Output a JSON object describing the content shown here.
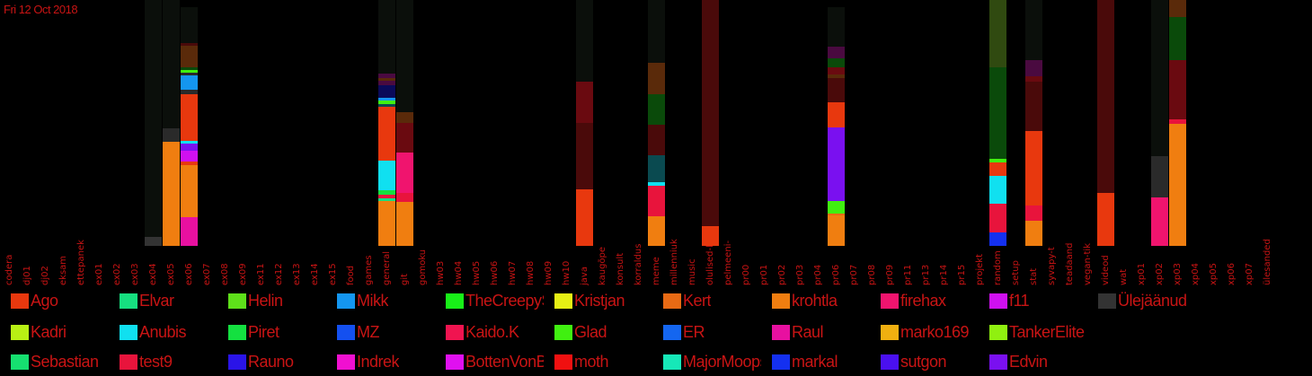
{
  "date_label": "Fri 12 Oct 2018",
  "colors": {
    "background": "#000000",
    "text": "#c81414",
    "inactive": "#0b0f0b"
  },
  "chart_data": {
    "type": "bar",
    "stacked": true,
    "title": "",
    "xlabel": "",
    "ylabel": "",
    "categories": [
      "codera",
      "dj01",
      "dj02",
      "eksam",
      "ettepanek",
      "ex01",
      "ex02",
      "ex03",
      "ex04",
      "ex05",
      "ex06",
      "ex07",
      "ex08",
      "ex09",
      "ex11",
      "ex12",
      "ex13",
      "ex14",
      "ex15",
      "food",
      "games",
      "general",
      "git",
      "gomoku",
      "hw03",
      "hw04",
      "hw05",
      "hw06",
      "hw07",
      "hw08",
      "hw09",
      "hw10",
      "java",
      "kaugõpe",
      "konsult",
      "korraldus",
      "meme",
      "millenniuk",
      "music",
      "olulised-l",
      "pelmeeni-",
      "pr00",
      "pr01",
      "pr02",
      "pr03",
      "pr04",
      "pr06",
      "pr07",
      "pr08",
      "pr09",
      "pr11",
      "pr13",
      "pr14",
      "pr15",
      "projekt",
      "random",
      "setup",
      "stat",
      "syvapy-t",
      "teadaand",
      "vegan-tik",
      "videod",
      "wat",
      "xp01",
      "xp02",
      "xp03",
      "xp04",
      "xp05",
      "xp06",
      "xp07",
      "ülesanded"
    ],
    "series_colors": {
      "Ago": "#e8380e",
      "Elvar": "#16e080",
      "Helin": "#5ee01a",
      "Mikk": "#1496f0",
      "TheCreepySh": "#18f018",
      "Kristjan": "#e6f014",
      "Kert": "#e86a14",
      "krohtla": "#f07e10",
      "firehax": "#f0146e",
      "f11": "#d010f0",
      "Ülejäänud": "#333333",
      "Kadri": "#b8f014",
      "Anubis": "#10e0f0",
      "Piret": "#14e040",
      "MZ": "#1450f0",
      "Kaido.K": "#f01450",
      "Glad": "#40f010",
      "ER": "#1466f0",
      "Raul": "#e810a0",
      "marko169": "#f0b010",
      "TankerElite": "#90f010",
      "Sebastian": "#16e070",
      "test9": "#e8143c",
      "Rauno": "#2a14e8",
      "Indrek": "#f010d0",
      "BottenVonBot": "#e010f0",
      "moth": "#f01010",
      "MajorMoopsy": "#16e8b8",
      "markal": "#1430f0",
      "sutgon": "#4a10f0",
      "Edvin": "#7a10f0",
      "dark_red": "#4a0a0a",
      "maroon": "#6a0a10",
      "dark_green": "#0a4a0a",
      "olive": "#304a10",
      "dark_teal": "#0a4a50",
      "dark_purple": "#4a0a40",
      "navy": "#0a0a5a",
      "brown": "#5a2a0a",
      "dark_gray": "#2a2a2a",
      "inactive": "#0b0f0b"
    },
    "stacks": [
      {
        "category": "ex04",
        "segments": [
          {
            "s": "Ülejäänud",
            "v": 10
          },
          {
            "s": "inactive",
            "v": 264
          }
        ]
      },
      {
        "category": "ex05",
        "segments": [
          {
            "s": "krohtla",
            "v": 116
          },
          {
            "s": "dark_gray",
            "v": 15
          },
          {
            "s": "inactive",
            "v": 143
          }
        ]
      },
      {
        "category": "ex06",
        "segments": [
          {
            "s": "Raul",
            "v": 32
          },
          {
            "s": "krohtla",
            "v": 58
          },
          {
            "s": "Ago",
            "v": 4
          },
          {
            "s": "f11",
            "v": 12
          },
          {
            "s": "Edvin",
            "v": 8
          },
          {
            "s": "Anubis",
            "v": 3
          },
          {
            "s": "Ago",
            "v": 52
          },
          {
            "s": "dark_gray",
            "v": 5
          },
          {
            "s": "Mikk",
            "v": 16
          },
          {
            "s": "dark_gray",
            "v": 3
          },
          {
            "s": "Glad",
            "v": 3
          },
          {
            "s": "dark_green",
            "v": 3
          },
          {
            "s": "brown",
            "v": 24
          },
          {
            "s": "dark_red",
            "v": 3
          },
          {
            "s": "inactive",
            "v": 40
          }
        ]
      },
      {
        "category": "general",
        "segments": [
          {
            "s": "krohtla",
            "v": 50
          },
          {
            "s": "Elvar",
            "v": 3
          },
          {
            "s": "test9",
            "v": 4
          },
          {
            "s": "Piret",
            "v": 5
          },
          {
            "s": "Anubis",
            "v": 33
          },
          {
            "s": "Ago",
            "v": 60
          },
          {
            "s": "dark_teal",
            "v": 3
          },
          {
            "s": "Glad",
            "v": 4
          },
          {
            "s": "Mikk",
            "v": 3
          },
          {
            "s": "navy",
            "v": 14
          },
          {
            "s": "dark_purple",
            "v": 5
          },
          {
            "s": "brown",
            "v": 3
          },
          {
            "s": "dark_purple",
            "v": 5
          },
          {
            "s": "inactive",
            "v": 82
          }
        ]
      },
      {
        "category": "git",
        "segments": [
          {
            "s": "krohtla",
            "v": 49
          },
          {
            "s": "test9",
            "v": 10
          },
          {
            "s": "firehax",
            "v": 45
          },
          {
            "s": "maroon",
            "v": 33
          },
          {
            "s": "brown",
            "v": 12
          },
          {
            "s": "inactive",
            "v": 125
          }
        ]
      },
      {
        "category": "java",
        "segments": [
          {
            "s": "Ago",
            "v": 63
          },
          {
            "s": "dark_red",
            "v": 74
          },
          {
            "s": "maroon",
            "v": 46
          },
          {
            "s": "inactive",
            "v": 91
          }
        ]
      },
      {
        "category": "meme",
        "segments": [
          {
            "s": "krohtla",
            "v": 33
          },
          {
            "s": "test9",
            "v": 34
          },
          {
            "s": "Anubis",
            "v": 4
          },
          {
            "s": "dark_teal",
            "v": 30
          },
          {
            "s": "dark_red",
            "v": 34
          },
          {
            "s": "dark_green",
            "v": 34
          },
          {
            "s": "brown",
            "v": 35
          },
          {
            "s": "inactive",
            "v": 70
          }
        ]
      },
      {
        "category": "olulised-l",
        "segments": [
          {
            "s": "Ago",
            "v": 22
          },
          {
            "s": "dark_red",
            "v": 252
          }
        ]
      },
      {
        "category": "pr06",
        "segments": [
          {
            "s": "krohtla",
            "v": 34
          },
          {
            "s": "Kert",
            "v": 2
          },
          {
            "s": "Glad",
            "v": 14
          },
          {
            "s": "Edvin",
            "v": 82
          },
          {
            "s": "Ago",
            "v": 28
          },
          {
            "s": "dark_red",
            "v": 27
          },
          {
            "s": "brown",
            "v": 4
          },
          {
            "s": "maroon",
            "v": 8
          },
          {
            "s": "dark_green",
            "v": 10
          },
          {
            "s": "dark_purple",
            "v": 13
          },
          {
            "s": "inactive",
            "v": 44
          }
        ]
      },
      {
        "category": "random",
        "segments": [
          {
            "s": "markal",
            "v": 15
          },
          {
            "s": "test9",
            "v": 32
          },
          {
            "s": "Anubis",
            "v": 31
          },
          {
            "s": "Ago",
            "v": 15
          },
          {
            "s": "Glad",
            "v": 4
          },
          {
            "s": "dark_green",
            "v": 102
          },
          {
            "s": "olive",
            "v": 75
          }
        ]
      },
      {
        "category": "stat",
        "segments": [
          {
            "s": "krohtla",
            "v": 28
          },
          {
            "s": "test9",
            "v": 17
          },
          {
            "s": "Ago",
            "v": 83
          },
          {
            "s": "dark_red",
            "v": 55
          },
          {
            "s": "maroon",
            "v": 6
          },
          {
            "s": "dark_purple",
            "v": 18
          },
          {
            "s": "inactive",
            "v": 67
          }
        ]
      },
      {
        "category": "videod",
        "segments": [
          {
            "s": "Ago",
            "v": 59
          },
          {
            "s": "dark_red",
            "v": 215
          }
        ]
      },
      {
        "category": "xp02",
        "segments": [
          {
            "s": "firehax",
            "v": 54
          },
          {
            "s": "dark_gray",
            "v": 46
          },
          {
            "s": "inactive",
            "v": 174
          }
        ]
      },
      {
        "category": "xp03",
        "segments": [
          {
            "s": "krohtla",
            "v": 136
          },
          {
            "s": "test9",
            "v": 5
          },
          {
            "s": "maroon",
            "v": 66
          },
          {
            "s": "dark_green",
            "v": 48
          },
          {
            "s": "brown",
            "v": 19
          }
        ]
      }
    ],
    "legend": [
      [
        "Ago",
        "Elvar",
        "Helin",
        "Mikk",
        "TheCreepySh",
        "Kristjan",
        "Kert",
        "krohtla",
        "firehax",
        "f11",
        "Ülejäänud"
      ],
      [
        "Kadri",
        "Anubis",
        "Piret",
        "MZ",
        "Kaido.K",
        "Glad",
        "ER",
        "Raul",
        "marko169",
        "TankerElite"
      ],
      [
        "Sebastian",
        "test9",
        "Rauno",
        "Indrek",
        "BottenVonBot",
        "moth",
        "MajorMoopsy",
        "markal",
        "sutgon",
        "Edvin"
      ]
    ],
    "legend_placement": "bottom",
    "grid": false
  }
}
